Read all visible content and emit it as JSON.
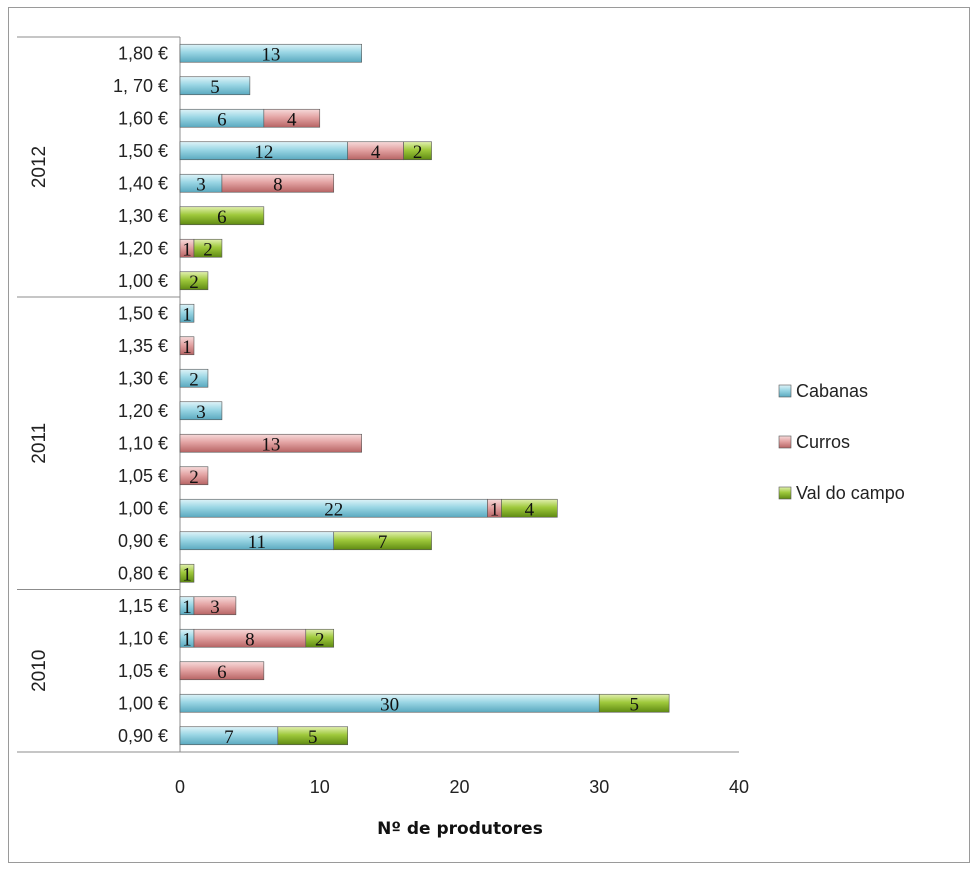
{
  "chart_data": {
    "type": "bar",
    "orientation": "horizontal",
    "stacked": true,
    "title": "",
    "xlabel": "Nº de produtores",
    "ylabel": "",
    "xlim": [
      0,
      40
    ],
    "x_ticks": [
      "0",
      "10",
      "20",
      "30",
      "40"
    ],
    "legend_position": "right",
    "series": [
      {
        "name": "Cabanas",
        "color": "#8fd0e0"
      },
      {
        "name": "Curros",
        "color": "#e09a9a"
      },
      {
        "name": "Val do campo",
        "color": "#a6cc48"
      }
    ],
    "groups": [
      {
        "name": "2012",
        "rows": [
          {
            "label": "1,80 €",
            "values": [
              13,
              0,
              0
            ]
          },
          {
            "label": "1, 70 €",
            "values": [
              5,
              0,
              0
            ]
          },
          {
            "label": "1,60 €",
            "values": [
              6,
              4,
              0
            ]
          },
          {
            "label": "1,50 €",
            "values": [
              12,
              4,
              2
            ]
          },
          {
            "label": "1,40 €",
            "values": [
              3,
              8,
              0
            ]
          },
          {
            "label": "1,30 €",
            "values": [
              0,
              0,
              6
            ]
          },
          {
            "label": "1,20 €",
            "values": [
              0,
              1,
              2
            ]
          },
          {
            "label": "1,00 €",
            "values": [
              0,
              0,
              2
            ]
          }
        ]
      },
      {
        "name": "2011",
        "rows": [
          {
            "label": "1,50 €",
            "values": [
              1,
              0,
              0
            ]
          },
          {
            "label": "1,35 €",
            "values": [
              0,
              1,
              0
            ]
          },
          {
            "label": "1,30 €",
            "values": [
              2,
              0,
              0
            ]
          },
          {
            "label": "1,20 €",
            "values": [
              3,
              0,
              0
            ]
          },
          {
            "label": "1,10 €",
            "values": [
              0,
              13,
              0
            ]
          },
          {
            "label": "1,05 €",
            "values": [
              0,
              2,
              0
            ]
          },
          {
            "label": "1,00 €",
            "values": [
              22,
              1,
              4
            ]
          },
          {
            "label": "0,90 €",
            "values": [
              11,
              0,
              7
            ]
          },
          {
            "label": "0,80 €",
            "values": [
              0,
              0,
              1
            ]
          }
        ]
      },
      {
        "name": "2010",
        "rows": [
          {
            "label": "1,15 €",
            "values": [
              1,
              3,
              0
            ]
          },
          {
            "label": "1,10 €",
            "values": [
              1,
              8,
              2
            ]
          },
          {
            "label": "1,05 €",
            "values": [
              0,
              6,
              0
            ]
          },
          {
            "label": "1,00 €",
            "values": [
              30,
              0,
              5
            ]
          },
          {
            "label": "0,90 €",
            "values": [
              7,
              0,
              5
            ]
          }
        ]
      }
    ]
  }
}
